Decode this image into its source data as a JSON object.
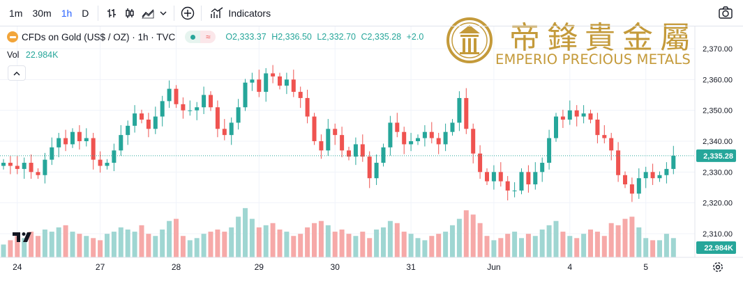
{
  "toolbar": {
    "intervals": [
      "1m",
      "30m",
      "1h",
      "D"
    ],
    "active_interval": "1h",
    "indicators_label": "Indicators"
  },
  "legend": {
    "symbol": "CFDs on Gold (US$ / OZ) · 1h · TVC",
    "open": "O2,333.37",
    "high": "H2,336.50",
    "low": "L2,332.70",
    "close": "C2,335.28",
    "change": "+2.0"
  },
  "volume": {
    "label": "Vol",
    "value": "22.984K"
  },
  "watermark": {
    "chinese": "帝鋒貴金屬",
    "english": "EMPERIO PRECIOUS METALS"
  },
  "colors": {
    "up": "#26a69a",
    "down": "#ef5350",
    "vol_up": "#9fd6d2",
    "vol_down": "#f6a9a8",
    "brand": "#c49a3a",
    "accent": "#2962ff"
  },
  "icons": [
    "bar-type-icon",
    "candle-icon",
    "area-icon",
    "chevron-down-icon",
    "add-icon",
    "indicators-icon",
    "camera-icon",
    "settings-icon",
    "collapse-arrow-icon"
  ],
  "chart_data": {
    "type": "candlestick",
    "y_ticks": [
      "2,370.00",
      "2,360.00",
      "2,350.00",
      "2,340.00",
      "2,330.00",
      "2,320.00",
      "2,310.00"
    ],
    "y_tick_values": [
      2370,
      2360,
      2350,
      2340,
      2330,
      2320,
      2310
    ],
    "ylim": [
      2305.2,
      2373.7
    ],
    "x_ticks": [
      "24",
      "27",
      "28",
      "29",
      "30",
      "31",
      "Jun",
      "4",
      "5"
    ],
    "x_tick_bar_index": [
      2,
      14,
      25,
      37,
      48,
      59,
      71,
      82,
      93
    ],
    "last_price": 2335.28,
    "last_price_label": "2,335.28",
    "volume_label": "22.984K",
    "close": [
      2333,
      2332,
      2331,
      2333,
      2330,
      2329,
      2334,
      2338,
      2341,
      2339,
      2343,
      2340,
      2341,
      2334,
      2332,
      2333,
      2337,
      2342,
      2345,
      2349,
      2347,
      2344,
      2348,
      2353,
      2357,
      2352,
      2350,
      2350,
      2351,
      2355,
      2351,
      2344,
      2342,
      2346,
      2351,
      2359,
      2360,
      2356,
      2362,
      2361,
      2358,
      2360,
      2356,
      2354,
      2348,
      2340,
      2337,
      2344,
      2342,
      2337,
      2335,
      2339,
      2335,
      2328,
      2333,
      2338,
      2346,
      2343,
      2339,
      2340,
      2341,
      2343,
      2341,
      2339,
      2343,
      2346,
      2354,
      2344,
      2336,
      2330,
      2327,
      2330,
      2327,
      2324,
      2324,
      2330,
      2326,
      2330,
      2333,
      2341,
      2348,
      2347,
      2350,
      2348,
      2349,
      2347,
      2342,
      2341,
      2337,
      2329,
      2326,
      2323,
      2328,
      2330,
      2328,
      2329,
      2331,
      2335.28
    ],
    "volume": [
      6,
      8,
      10,
      9,
      12,
      10,
      13,
      12,
      14,
      15,
      12,
      11,
      10,
      9,
      8,
      11,
      12,
      14,
      13,
      12,
      15,
      11,
      10,
      13,
      17,
      18,
      10,
      8,
      9,
      11,
      12,
      13,
      12,
      14,
      19,
      23,
      18,
      14,
      15,
      16,
      13,
      12,
      10,
      11,
      14,
      16,
      17,
      15,
      12,
      13,
      11,
      10,
      12,
      9,
      13,
      14,
      17,
      16,
      12,
      11,
      9,
      8,
      10,
      11,
      12,
      15,
      18,
      22,
      20,
      16,
      10,
      8,
      9,
      11,
      12,
      9,
      11,
      10,
      13,
      15,
      17,
      12,
      10,
      9,
      11,
      13,
      12,
      10,
      16,
      15,
      18,
      19,
      14,
      9,
      8,
      8,
      11,
      9
    ],
    "volume_lim": [
      0,
      26
    ]
  }
}
